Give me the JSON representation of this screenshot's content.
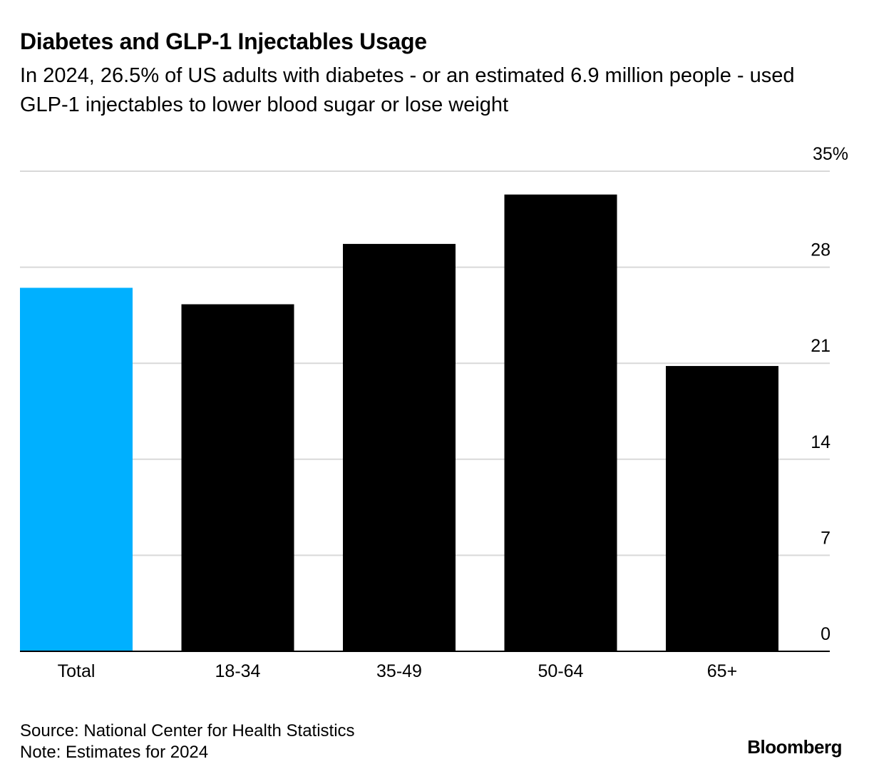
{
  "title": "Diabetes and GLP-1 Injectables Usage",
  "subtitle": "In 2024, 26.5% of US adults with diabetes - or an estimated 6.9 million people - used GLP-1 injectables to lower blood sugar or lose weight",
  "footer": {
    "source": "Source: National Center for Health Statistics",
    "note": "Note: Estimates for 2024"
  },
  "brand": "Bloomberg",
  "colors": {
    "highlight": "#00B0FF",
    "bar": "#000000",
    "grid": "#D9D9D9"
  },
  "chart_data": {
    "type": "bar",
    "categories": [
      "Total",
      "18-34",
      "35-49",
      "50-64",
      "65+"
    ],
    "values": [
      26.5,
      25.3,
      29.7,
      33.3,
      20.8
    ],
    "highlight_category": "Total",
    "ylim": [
      0,
      35
    ],
    "yticks": [
      0,
      7,
      14,
      21,
      28,
      35
    ],
    "ytick_labels": [
      "0",
      "7",
      "14",
      "21",
      "28",
      "35%"
    ],
    "y_axis_side": "right",
    "grid": true,
    "xlabel": "",
    "ylabel": ""
  }
}
